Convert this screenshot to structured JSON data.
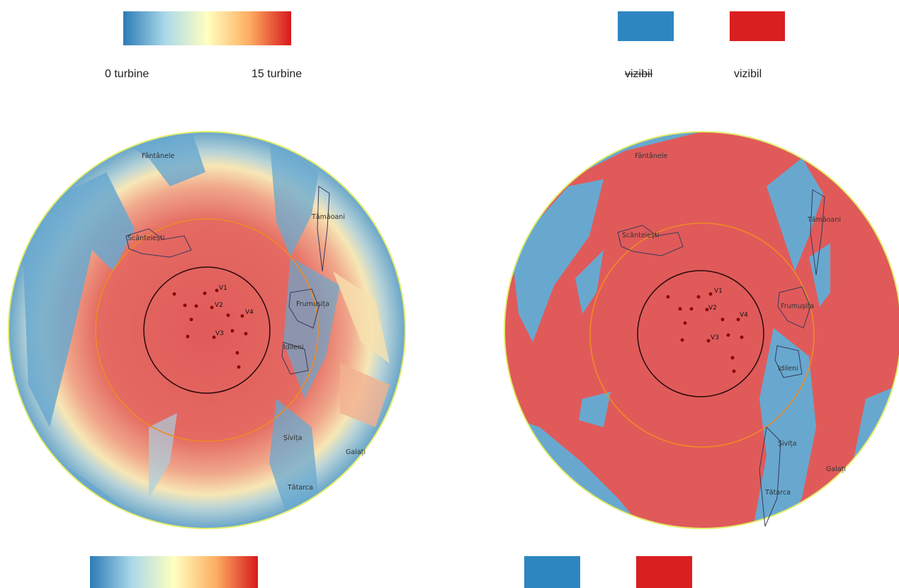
{
  "colors": {
    "blue": "#2e86c1",
    "red": "#d91f1f",
    "map_blue": "#68a8cf",
    "map_red": "#e05a5a",
    "outer_ring": "#e2ee6a",
    "zone_ring": "#f08a24",
    "inner_ring": "#2a0a0a",
    "turbine": "#8b0000"
  },
  "legend_left": {
    "min_label": "0 turbine",
    "max_label": "15 turbine"
  },
  "legend_right": {
    "not_visible_label": "vizibil",
    "visible_label": "vizibil"
  },
  "map_left": {
    "places": [
      "Fântânele",
      "Scânteiești",
      "Tămăoani",
      "Frumușița",
      "Idileni",
      "Șivița",
      "Galați",
      "Tătarca"
    ],
    "turbine_labels": [
      "V1",
      "V2",
      "V3",
      "V4"
    ]
  },
  "map_right": {
    "places": [
      "Fântânele",
      "Scânteiești",
      "Tămăoani",
      "Frumușița",
      "Idileni",
      "Șivița",
      "Galați",
      "Tătarca"
    ],
    "turbine_labels": [
      "V1",
      "V2",
      "V3",
      "V4"
    ]
  }
}
